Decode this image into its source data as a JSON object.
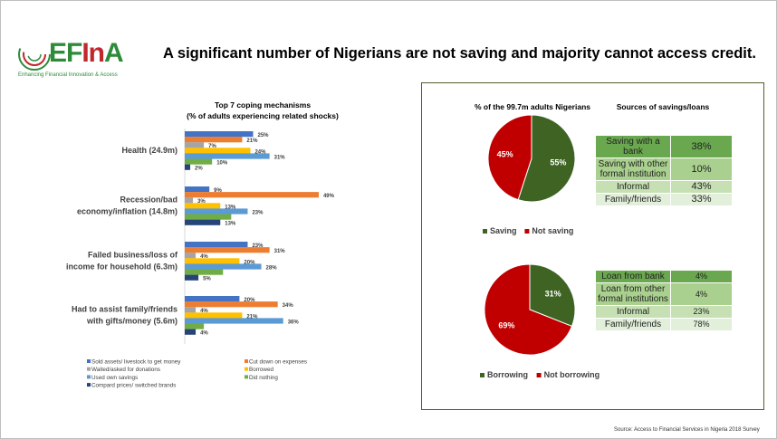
{
  "logo": {
    "name": "EFInA",
    "tagline": "Enhancing Financial Innovation & Access"
  },
  "title": "A significant number of Nigerians are not saving and majority cannot access credit.",
  "source": "Source: Access to Financial Services in Nigeria 2018 Survey",
  "colors": {
    "sold": "#4472c4",
    "cut": "#ed7d31",
    "waited": "#a5a5a5",
    "borrowed": "#ffc000",
    "savings": "#5b9bd5",
    "nothing": "#70ad47",
    "compared": "#264478",
    "green": "#3e6323",
    "red": "#c00000"
  },
  "chart_data": [
    {
      "type": "bar",
      "orientation": "horizontal",
      "title": "Top 7 coping mechanisms",
      "subtitle": "(% of adults experiencing related shocks)",
      "categories": [
        [
          "Health (24.9m)"
        ],
        [
          "Recession/bad",
          "economy/inflation (14.8m)"
        ],
        [
          "Failed business/loss of",
          "income for household (6.3m)"
        ],
        [
          "Had to assist family/friends",
          "with gifts/money (5.6m)"
        ]
      ],
      "series": [
        {
          "name": "Sold assets/ livestock to get money",
          "key": "sold",
          "values": [
            25,
            9,
            23,
            20
          ],
          "labels": [
            "25%",
            "9%",
            "23%",
            "20%"
          ]
        },
        {
          "name": "Cut down on expenses",
          "key": "cut",
          "values": [
            21,
            49,
            31,
            34
          ],
          "labels": [
            "21%",
            "49%",
            "31%",
            "34%"
          ]
        },
        {
          "name": "Waited/asked for donations",
          "key": "waited",
          "values": [
            7,
            3,
            4,
            4
          ],
          "labels": [
            "7%",
            "3%",
            "4%",
            "4%"
          ]
        },
        {
          "name": "Borrowed",
          "key": "borrowed",
          "values": [
            24,
            13,
            20,
            21
          ],
          "labels": [
            "24%",
            "13%",
            "20%",
            "21%"
          ]
        },
        {
          "name": "Used own savings",
          "key": "savings",
          "values": [
            31,
            23,
            28,
            36
          ],
          "labels": [
            "31%",
            "23%",
            "28%",
            "36%"
          ]
        },
        {
          "name": "Did nothing",
          "key": "nothing",
          "values": [
            10,
            17,
            14,
            7
          ],
          "labels": [
            "10%",
            "",
            "",
            ""
          ]
        },
        {
          "name": "Compard prices/ switched brands",
          "key": "compared",
          "values": [
            2,
            13,
            5,
            4
          ],
          "labels": [
            "2%",
            "13%",
            "5%",
            "4%"
          ]
        }
      ],
      "legend": "bottom"
    },
    {
      "type": "pie",
      "title": "% of the 99.7m adults Nigerians",
      "slices": [
        {
          "name": "Saving",
          "value": 55,
          "label": "55%",
          "key": "green"
        },
        {
          "name": "Not saving",
          "value": 45,
          "label": "45%",
          "key": "red"
        }
      ]
    },
    {
      "type": "pie",
      "title": "",
      "slices": [
        {
          "name": "Borrowing",
          "value": 31,
          "label": "31%",
          "key": "green"
        },
        {
          "name": "Not borrowing",
          "value": 69,
          "label": "69%",
          "key": "red"
        }
      ]
    }
  ],
  "savings_table": {
    "title": "Sources of savings/loans",
    "rows": [
      [
        "Saving with a bank",
        "38%"
      ],
      [
        "Saving with other formal institution",
        "10%"
      ],
      [
        "Informal",
        "43%"
      ],
      [
        "Family/friends",
        "33%"
      ]
    ]
  },
  "loans_table": {
    "rows": [
      [
        "Loan from bank",
        "4%"
      ],
      [
        "Loan from other formal institutions",
        "4%"
      ],
      [
        "Informal",
        "23%"
      ],
      [
        "Family/friends",
        "78%"
      ]
    ]
  }
}
